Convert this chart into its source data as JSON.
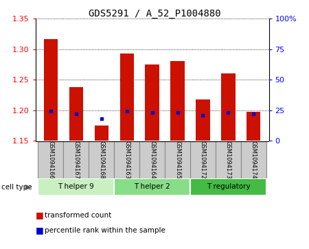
{
  "title": "GDS5291 / A_52_P1004880",
  "samples": [
    "GSM1094166",
    "GSM1094167",
    "GSM1094168",
    "GSM1094163",
    "GSM1094164",
    "GSM1094165",
    "GSM1094172",
    "GSM1094173",
    "GSM1094174"
  ],
  "transformed_counts": [
    1.317,
    1.238,
    1.175,
    1.293,
    1.275,
    1.28,
    1.218,
    1.26,
    1.197
  ],
  "percentile_ranks": [
    24,
    22,
    18,
    24,
    23,
    23,
    21,
    23,
    22
  ],
  "ylim_left": [
    1.15,
    1.35
  ],
  "ylim_right": [
    0,
    100
  ],
  "yticks_left": [
    1.15,
    1.2,
    1.25,
    1.3,
    1.35
  ],
  "yticks_right": [
    0,
    25,
    50,
    75,
    100
  ],
  "bar_color": "#cc1100",
  "dot_color": "#0000cc",
  "bar_bottom": 1.15,
  "cell_types": [
    {
      "label": "T helper 9",
      "start": 0,
      "end": 3,
      "color": "#c8f0c0"
    },
    {
      "label": "T helper 2",
      "start": 3,
      "end": 6,
      "color": "#88dd88"
    },
    {
      "label": "T regulatory",
      "start": 6,
      "end": 9,
      "color": "#44bb44"
    }
  ],
  "label_area_bg": "#cccccc",
  "label_border": "#888888"
}
